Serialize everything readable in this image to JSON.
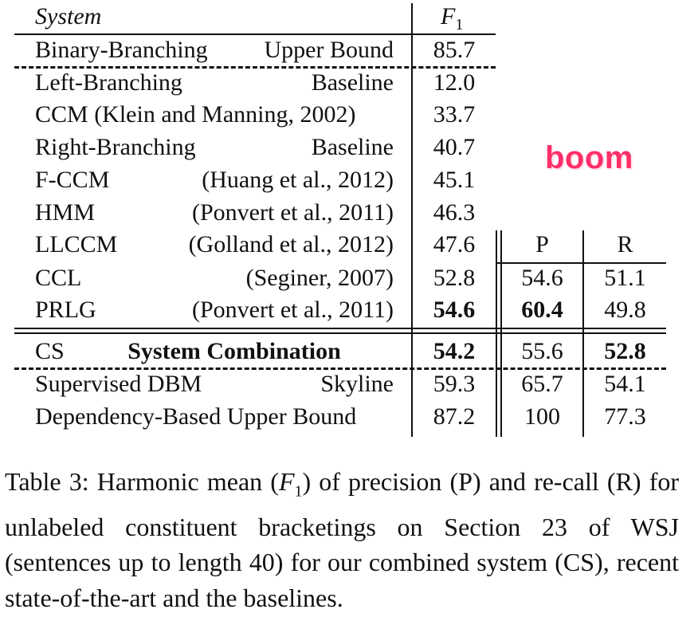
{
  "header": {
    "system": "System",
    "f1": "F",
    "f1_sub": "1"
  },
  "rows": [
    {
      "name": "Binary-Branching",
      "note": "Upper Bound",
      "f1": "85.7",
      "f1_bold": false,
      "note_align": "right"
    },
    {
      "name": "Left-Branching",
      "note": "Baseline",
      "f1": "12.0",
      "f1_bold": false,
      "note_align": "right"
    },
    {
      "name": "CCM (Klein and Manning, 2002)",
      "note": "",
      "f1": "33.7",
      "f1_bold": false,
      "note_align": "right"
    },
    {
      "name": "Right-Branching",
      "note": "Baseline",
      "f1": "40.7",
      "f1_bold": false,
      "note_align": "right"
    },
    {
      "name": "F-CCM",
      "note": "(Huang et al., 2012)",
      "f1": "45.1",
      "f1_bold": false,
      "note_align": "right"
    },
    {
      "name": "HMM",
      "note": "(Ponvert et al., 2011)",
      "f1": "46.3",
      "f1_bold": false,
      "note_align": "right"
    },
    {
      "name": "LLCCM",
      "note": "(Golland et al., 2012)",
      "f1": "47.6",
      "f1_bold": false,
      "note_align": "right"
    },
    {
      "name": "CCL",
      "note": "(Seginer, 2007)",
      "f1": "52.8",
      "f1_bold": false,
      "note_align": "right",
      "p": "54.6",
      "p_bold": false,
      "r": "51.1",
      "r_bold": false
    },
    {
      "name": "PRLG",
      "note": "(Ponvert et al., 2011)",
      "f1": "54.6",
      "f1_bold": true,
      "note_align": "right",
      "p": "60.4",
      "p_bold": true,
      "r": "49.8",
      "r_bold": false
    },
    {
      "name": "CS",
      "note": "System Combination",
      "f1": "54.2",
      "f1_bold": true,
      "note_align": "center",
      "note_bold": true,
      "p": "55.6",
      "p_bold": false,
      "r": "52.8",
      "r_bold": true
    },
    {
      "name": "Supervised DBM",
      "note": "Skyline",
      "f1": "59.3",
      "f1_bold": false,
      "note_align": "right",
      "p": "65.7",
      "p_bold": false,
      "r": "54.1",
      "r_bold": false
    },
    {
      "name": "Dependency-Based Upper Bound",
      "note": "",
      "f1": "87.2",
      "f1_bold": false,
      "note_align": "right",
      "p": "100",
      "p_bold": false,
      "r": "77.3",
      "r_bold": false
    }
  ],
  "pr_header": {
    "p": "P",
    "r": "R"
  },
  "overlay": {
    "text": "boom"
  },
  "caption": {
    "t1": "Table 3:  Harmonic mean (",
    "f": "F",
    "sub": "1",
    "t2": ") of precision (",
    "p": "P",
    "t3": ") and re-call (",
    "r": "R",
    "t4": ") for unlabeled constituent bracketings on Section 23 of WSJ (sentences up to length 40) for our combined system (CS), recent state-of-the-art and the baselines."
  },
  "colors": {
    "overlay": "#ff2f6a",
    "ink": "#111111"
  }
}
